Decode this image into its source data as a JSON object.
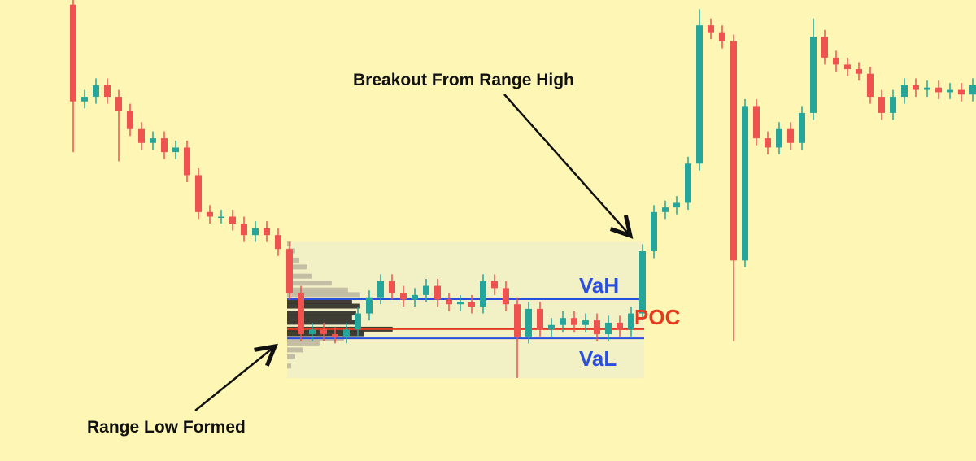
{
  "chart_data": {
    "type": "candlestick",
    "ylim": [
      0,
      100
    ],
    "up_color": "#26a69a",
    "down_color": "#ef5350",
    "open": [
      99,
      78,
      79,
      81.5,
      79,
      76,
      72,
      69,
      70,
      67,
      68,
      62,
      54,
      53,
      53,
      51.5,
      49,
      50.5,
      49,
      46,
      36.5,
      27.5,
      28.5,
      27.5,
      27,
      28.5,
      32,
      35.5,
      39,
      36.5,
      35,
      36,
      38,
      35,
      34,
      34.5,
      33.5,
      39,
      37.5,
      34,
      27,
      33,
      28.5,
      29.5,
      31,
      29.5,
      30.5,
      27.5,
      30,
      28.5,
      32,
      45.5,
      54,
      55,
      56,
      64.5,
      94.5,
      93,
      91,
      43.5,
      77,
      70,
      68,
      72,
      69,
      75.5,
      92,
      87.5,
      86,
      85,
      84,
      79,
      75.5,
      79,
      81.5,
      80.5,
      81,
      80,
      80.5,
      79.5
    ],
    "high": [
      100,
      80.5,
      83,
      83,
      80.5,
      77.5,
      73.5,
      71.5,
      71.5,
      69.5,
      69.5,
      63.5,
      55.5,
      54.5,
      54.5,
      53,
      52,
      52,
      50.5,
      47.5,
      38,
      30,
      30,
      29,
      30,
      33.5,
      37,
      40.5,
      40.5,
      38,
      37.5,
      39.5,
      39.5,
      36.5,
      36,
      36,
      40.5,
      40.5,
      39,
      35.5,
      34.5,
      34.5,
      31,
      32.5,
      32.5,
      32,
      32,
      31.5,
      31.5,
      33.5,
      47,
      55.5,
      56.5,
      57.5,
      66,
      98,
      96,
      94.5,
      92.5,
      78.5,
      78.5,
      71.5,
      73.5,
      73.5,
      77,
      96,
      93.5,
      89,
      87.5,
      86.5,
      85.5,
      80.5,
      80.5,
      83,
      83,
      82.5,
      82.5,
      82,
      82,
      83
    ],
    "low": [
      67,
      76.5,
      77.5,
      77.5,
      65,
      70.5,
      67.5,
      67.5,
      65.5,
      65.5,
      60.5,
      52.5,
      51.5,
      51.5,
      50,
      47.5,
      47.5,
      47.5,
      44.5,
      35,
      26,
      26,
      26,
      25.5,
      25.5,
      27,
      30.5,
      34,
      35,
      33.5,
      33.5,
      34.5,
      33.5,
      32.5,
      32.5,
      32,
      32,
      36,
      32.5,
      18,
      25.5,
      27,
      27,
      28,
      28,
      28,
      26,
      26,
      27,
      27,
      30.5,
      44,
      52.5,
      53.5,
      54.5,
      63,
      91.5,
      89.5,
      26,
      42,
      68.5,
      66.5,
      66.5,
      67.5,
      67.5,
      74,
      86,
      84.5,
      83.5,
      82.5,
      77.5,
      74,
      74,
      77.5,
      79,
      79,
      78.5,
      78.5,
      78,
      78
    ],
    "close": [
      78,
      79,
      81.5,
      79,
      76,
      72,
      69,
      70,
      67,
      68,
      62,
      54,
      53,
      53,
      51.5,
      49,
      50.5,
      49,
      46,
      36.5,
      27.5,
      28.5,
      27.5,
      27,
      28.5,
      32,
      35.5,
      39,
      36.5,
      35,
      36,
      38,
      35,
      34,
      34.5,
      33.5,
      39,
      37.5,
      34,
      27,
      33,
      28.5,
      29.5,
      31,
      29.5,
      30.5,
      27.5,
      30,
      28.5,
      32,
      45.5,
      54,
      55,
      56,
      64.5,
      94.5,
      93,
      91,
      43.5,
      77,
      70,
      68,
      72,
      69,
      75.5,
      92,
      87.5,
      86,
      85,
      84,
      79,
      75.5,
      79,
      81.5,
      80.5,
      81,
      80,
      80.5,
      79.5,
      81.5
    ],
    "volume_profile": {
      "range": [
        18,
        47.5
      ],
      "xlim": [
        0,
        440
      ],
      "levels": [
        47,
        45.5,
        43.5,
        42,
        40,
        38.5,
        37,
        36,
        34.5,
        33.5,
        32,
        31,
        30,
        28.5,
        27.5,
        26.5,
        25.5,
        24,
        22.5,
        20.5
      ],
      "volumes": [
        5,
        10,
        15,
        25,
        30,
        55,
        75,
        90,
        80,
        90,
        85,
        80,
        85,
        130,
        95,
        70,
        40,
        20,
        10,
        5
      ],
      "value_area_color": "#1f1f1a",
      "outside_color": "#b3ae98",
      "vah": 35.1,
      "val": 26.6,
      "poc": 28.6,
      "vah_label": "VaH",
      "val_label": "VaL",
      "poc_label": "POC",
      "va_color": "#2a4fe0",
      "poc_color": "#e53a1e"
    },
    "annotations": [
      "Breakout From Range High",
      "Range Low Formed"
    ]
  }
}
